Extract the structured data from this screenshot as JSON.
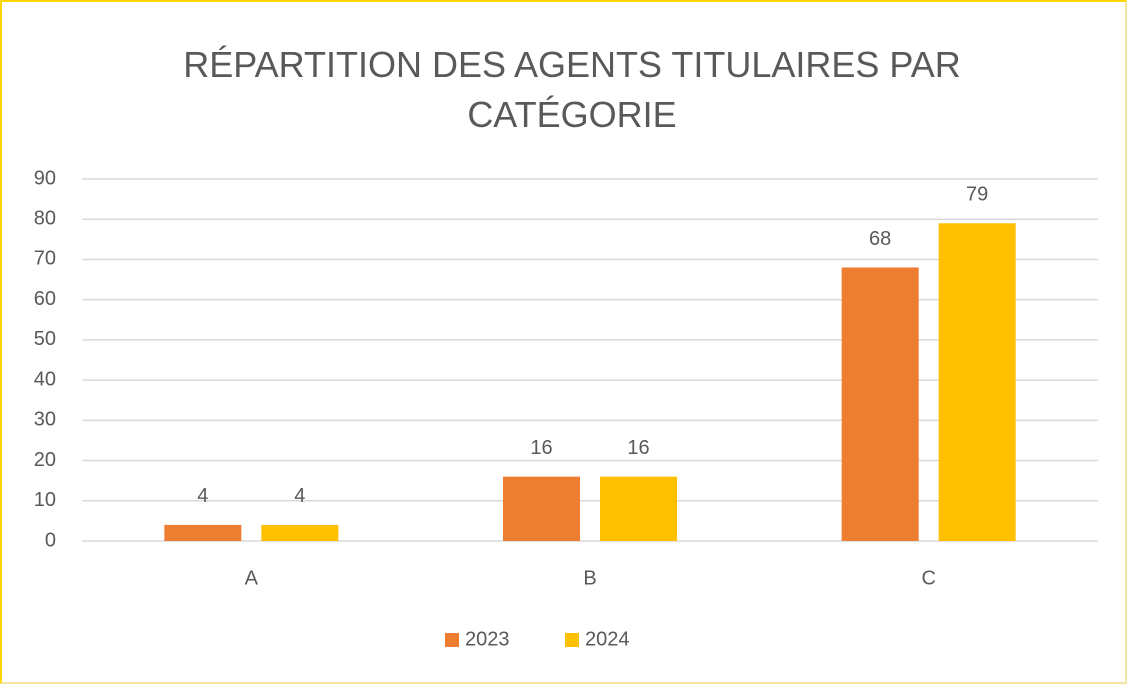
{
  "chart_data": {
    "type": "bar",
    "title": "RÉPARTITION DES AGENTS TITULAIRES PAR CATÉGORIE",
    "categories": [
      "A",
      "B",
      "C"
    ],
    "series": [
      {
        "name": "2023",
        "color": "#ed7d31",
        "values": [
          4,
          16,
          68
        ]
      },
      {
        "name": "2024",
        "color": "#ffc000",
        "values": [
          4,
          16,
          79
        ]
      }
    ],
    "ylim": [
      0,
      90
    ],
    "yticks": [
      0,
      10,
      20,
      30,
      40,
      50,
      60,
      70,
      80,
      90
    ],
    "grid": true,
    "legend": "bottom"
  }
}
